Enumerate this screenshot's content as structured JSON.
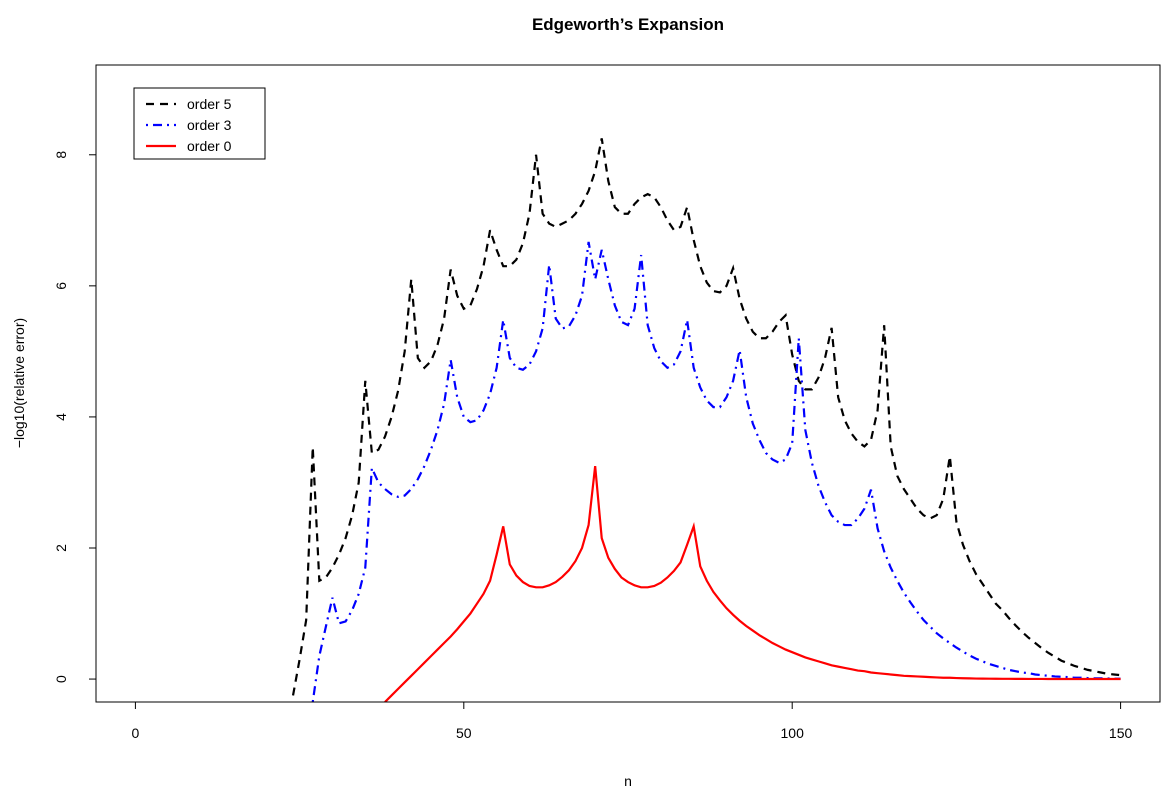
{
  "chart_data": {
    "type": "line",
    "title": "Edgeworth’s Expansion",
    "xlabel": "n",
    "ylabel": "−log10(relative error)",
    "x": [
      24,
      25,
      26,
      27,
      28,
      29,
      30,
      31,
      32,
      33,
      34,
      35,
      36,
      37,
      38,
      39,
      40,
      41,
      42,
      43,
      44,
      45,
      46,
      47,
      48,
      49,
      50,
      51,
      52,
      53,
      54,
      55,
      56,
      57,
      58,
      59,
      60,
      61,
      62,
      63,
      64,
      65,
      66,
      67,
      68,
      69,
      70,
      71,
      72,
      73,
      74,
      75,
      76,
      77,
      78,
      79,
      80,
      81,
      82,
      83,
      84,
      85,
      86,
      87,
      88,
      89,
      90,
      91,
      92,
      93,
      94,
      95,
      96,
      97,
      98,
      99,
      100,
      101,
      102,
      103,
      104,
      105,
      106,
      107,
      108,
      109,
      110,
      111,
      112,
      113,
      114,
      115,
      116,
      117,
      118,
      119,
      120,
      121,
      122,
      123,
      124,
      125,
      126,
      127,
      128,
      129,
      130,
      131,
      132,
      133,
      134,
      135,
      136,
      137,
      138,
      139,
      140,
      141,
      142,
      143,
      144,
      145,
      146,
      147,
      148,
      149,
      150
    ],
    "series": [
      {
        "name": "order 5",
        "color": "#000000",
        "linestyle": "dashed",
        "values": [
          -0.25,
          0.3,
          0.9,
          3.54,
          1.5,
          1.55,
          1.7,
          1.9,
          2.15,
          2.5,
          3.0,
          4.55,
          3.45,
          3.5,
          3.7,
          4.0,
          4.4,
          5.0,
          6.1,
          4.9,
          4.75,
          4.85,
          5.1,
          5.5,
          6.25,
          5.85,
          5.65,
          5.7,
          5.95,
          6.3,
          6.85,
          6.55,
          6.3,
          6.3,
          6.4,
          6.65,
          7.1,
          8.0,
          7.1,
          6.95,
          6.9,
          6.95,
          7.0,
          7.1,
          7.25,
          7.45,
          7.75,
          8.25,
          7.6,
          7.2,
          7.1,
          7.1,
          7.25,
          7.35,
          7.4,
          7.35,
          7.2,
          7.0,
          6.85,
          6.9,
          7.2,
          6.7,
          6.3,
          6.05,
          5.92,
          5.9,
          6.0,
          6.27,
          5.8,
          5.5,
          5.3,
          5.2,
          5.2,
          5.3,
          5.45,
          5.55,
          4.95,
          4.55,
          4.42,
          4.42,
          4.6,
          4.9,
          5.36,
          4.3,
          3.95,
          3.75,
          3.62,
          3.55,
          3.65,
          4.1,
          5.4,
          3.55,
          3.1,
          2.9,
          2.75,
          2.6,
          2.5,
          2.45,
          2.5,
          2.75,
          3.4,
          2.4,
          2.05,
          1.8,
          1.6,
          1.45,
          1.3,
          1.15,
          1.05,
          0.93,
          0.82,
          0.72,
          0.63,
          0.55,
          0.47,
          0.4,
          0.34,
          0.28,
          0.24,
          0.2,
          0.17,
          0.14,
          0.12,
          0.1,
          0.08,
          0.07,
          0.06
        ]
      },
      {
        "name": "order 3",
        "color": "#0000ff",
        "linestyle": "dashdot",
        "values": [
          null,
          null,
          null,
          -0.35,
          0.35,
          0.8,
          1.24,
          0.85,
          0.88,
          1.05,
          1.3,
          1.7,
          3.22,
          3.0,
          2.9,
          2.82,
          2.78,
          2.8,
          2.9,
          3.05,
          3.25,
          3.5,
          3.8,
          4.2,
          4.87,
          4.3,
          4.0,
          3.92,
          3.95,
          4.1,
          4.35,
          4.75,
          5.48,
          4.9,
          4.75,
          4.72,
          4.8,
          5.0,
          5.35,
          6.32,
          5.5,
          5.35,
          5.38,
          5.55,
          5.85,
          6.67,
          6.1,
          6.55,
          6.1,
          5.7,
          5.45,
          5.4,
          5.65,
          6.47,
          5.4,
          5.05,
          4.85,
          4.75,
          4.8,
          5.0,
          5.48,
          4.75,
          4.45,
          4.25,
          4.15,
          4.15,
          4.3,
          4.55,
          5.02,
          4.3,
          3.9,
          3.65,
          3.45,
          3.35,
          3.3,
          3.35,
          3.6,
          5.2,
          3.8,
          3.3,
          2.95,
          2.7,
          2.5,
          2.4,
          2.35,
          2.35,
          2.45,
          2.6,
          2.89,
          2.3,
          1.95,
          1.7,
          1.5,
          1.32,
          1.17,
          1.03,
          0.9,
          0.8,
          0.7,
          0.62,
          0.55,
          0.48,
          0.42,
          0.36,
          0.31,
          0.27,
          0.23,
          0.2,
          0.17,
          0.14,
          0.12,
          0.1,
          0.09,
          0.07,
          0.06,
          0.05,
          0.04,
          0.035,
          0.03,
          0.02,
          0.02,
          0.015,
          0.01,
          0.01,
          0.01,
          0.005,
          0.005
        ]
      },
      {
        "name": "order 0",
        "color": "#ff0000",
        "linestyle": "solid",
        "values": [
          null,
          null,
          null,
          null,
          null,
          null,
          null,
          null,
          null,
          null,
          null,
          null,
          null,
          null,
          -0.35,
          -0.25,
          -0.15,
          -0.05,
          0.05,
          0.15,
          0.25,
          0.35,
          0.45,
          0.55,
          0.65,
          0.76,
          0.88,
          1.0,
          1.15,
          1.3,
          1.5,
          1.9,
          2.33,
          1.75,
          1.58,
          1.48,
          1.42,
          1.4,
          1.4,
          1.43,
          1.48,
          1.56,
          1.66,
          1.8,
          2.0,
          2.35,
          3.25,
          2.15,
          1.85,
          1.68,
          1.55,
          1.48,
          1.43,
          1.4,
          1.4,
          1.42,
          1.47,
          1.55,
          1.65,
          1.78,
          2.05,
          2.33,
          1.72,
          1.5,
          1.33,
          1.2,
          1.08,
          0.98,
          0.89,
          0.81,
          0.74,
          0.67,
          0.61,
          0.55,
          0.5,
          0.45,
          0.41,
          0.37,
          0.33,
          0.3,
          0.27,
          0.24,
          0.21,
          0.19,
          0.17,
          0.15,
          0.13,
          0.12,
          0.1,
          0.09,
          0.08,
          0.07,
          0.06,
          0.05,
          0.045,
          0.04,
          0.035,
          0.03,
          0.025,
          0.02,
          0.02,
          0.015,
          0.012,
          0.01,
          0.008,
          0.007,
          0.006,
          0.005,
          0.004,
          0.004,
          0.003,
          0.003,
          0.002,
          0.002,
          0.002,
          0.001,
          0.001,
          0.001,
          0.001,
          0.001,
          0.001,
          0.001,
          0.001,
          0.001,
          0.001,
          0.001,
          0.001
        ]
      }
    ],
    "xlim": [
      -6,
      156
    ],
    "ylim": [
      -0.35,
      9.37
    ],
    "xticks": [
      0,
      50,
      100,
      150
    ],
    "yticks": [
      0,
      2,
      4,
      6,
      8
    ],
    "legend": "topleft"
  }
}
